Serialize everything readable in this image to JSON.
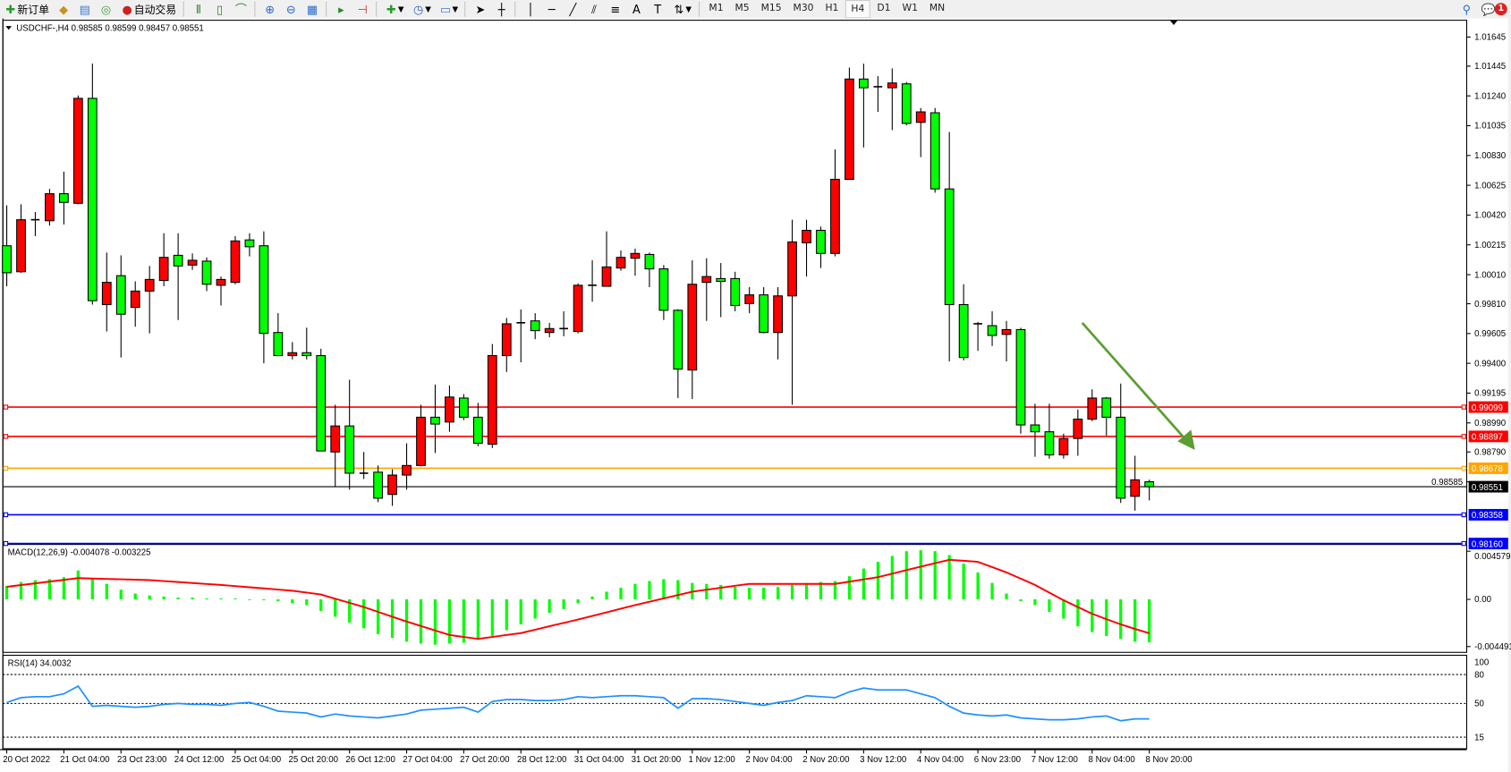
{
  "toolbar": {
    "new_order": "新订单",
    "auto_trading": "自动交易",
    "timeframes": [
      "M1",
      "M5",
      "M15",
      "M30",
      "H1",
      "H4",
      "D1",
      "W1",
      "MN"
    ],
    "active_timeframe": "H4",
    "notification_count": "1",
    "icons": [
      "new-order-icon",
      "market-watch-icon",
      "navigator-icon",
      "signals-icon",
      "auto-trading-icon",
      "bar-chart-icon",
      "candlestick-icon",
      "line-chart-icon",
      "zoom-in-icon",
      "zoom-out-icon",
      "tile-windows-icon",
      "autoscroll-icon",
      "chart-shift-icon",
      "indicators-icon",
      "periods-icon",
      "templates-icon",
      "cursor-icon",
      "crosshair-icon",
      "vertical-line-icon",
      "horizontal-line-icon",
      "trendline-icon",
      "equidistant-channel-icon",
      "fibonacci-icon",
      "text-icon",
      "text-label-icon",
      "arrows-icon",
      "search-icon",
      "chat-icon"
    ]
  },
  "chart": {
    "header": "USDCHF-,H4  0.98585 0.98599 0.98457 0.98551",
    "colors": {
      "bull": "#ff0000",
      "bear": "#00ff00",
      "wick": "#000000",
      "arrow": "#5a9e32"
    }
  },
  "chart_data": [
    {
      "type": "candlestick",
      "symbol": "USDCHF-",
      "timeframe": "H4",
      "ylim": [
        0.98167,
        1.01754
      ],
      "price_ticks": [
        "1.01645",
        "1.01445",
        "1.01240",
        "1.01035",
        "1.00830",
        "1.00625",
        "1.00420",
        "1.00215",
        "1.00010",
        "0.99810",
        "0.99605",
        "0.99400",
        "0.99195",
        "0.98990",
        "0.98790",
        "0.98585"
      ],
      "time_labels": [
        "20 Oct 2022",
        "21 Oct 04:00",
        "23 Oct 23:00",
        "24 Oct 12:00",
        "25 Oct 04:00",
        "25 Oct 20:00",
        "26 Oct 12:00",
        "27 Oct 04:00",
        "27 Oct 20:00",
        "28 Oct 12:00",
        "31 Oct 04:00",
        "31 Oct 20:00",
        "1 Nov 12:00",
        "2 Nov 04:00",
        "2 Nov 20:00",
        "3 Nov 12:00",
        "4 Nov 04:00",
        "6 Nov 23:00",
        "7 Nov 12:00",
        "8 Nov 04:00",
        "8 Nov 20:00"
      ],
      "hlines": [
        {
          "price": "0.99099",
          "color": "#ff0000"
        },
        {
          "price": "0.98897",
          "color": "#ff0000"
        },
        {
          "price": "0.98678",
          "color": "#ffa500"
        },
        {
          "price": "0.98551",
          "color": "#000000",
          "bid": true
        },
        {
          "price": "0.98358",
          "color": "#0000ff"
        },
        {
          "price": "0.98160",
          "color": "#0000ff"
        }
      ],
      "ohlc": [
        [
          1.00209,
          1.00487,
          0.9993,
          1.00023
        ],
        [
          1.0003,
          1.00494,
          1.00023,
          1.00388
        ],
        [
          1.00388,
          1.00441,
          1.00275,
          1.00388
        ],
        [
          1.00381,
          1.006,
          1.00348,
          1.00567
        ],
        [
          1.00567,
          1.00719,
          1.00355,
          1.00507
        ],
        [
          1.00501,
          1.01243,
          1.00494,
          1.01223
        ],
        [
          1.01223,
          1.01462,
          0.99804,
          0.99831
        ],
        [
          0.99804,
          1.00162,
          0.99619,
          0.99957
        ],
        [
          1.00003,
          1.00143,
          0.9944,
          0.99738
        ],
        [
          0.99785,
          0.99964,
          0.99652,
          0.99897
        ],
        [
          0.99897,
          1.0007,
          0.99606,
          0.99977
        ],
        [
          0.9997,
          1.00295,
          0.9993,
          1.00129
        ],
        [
          1.00143,
          1.00295,
          0.99698,
          1.0007
        ],
        [
          1.00076,
          1.00156,
          1.00043,
          1.00109
        ],
        [
          1.00103,
          1.00129,
          0.99897,
          0.99944
        ],
        [
          0.99937,
          0.99997,
          0.99798,
          0.99977
        ],
        [
          0.99957,
          1.00275,
          0.99944,
          1.00242
        ],
        [
          1.00249,
          1.00295,
          1.00136,
          1.00202
        ],
        [
          1.00209,
          1.00308,
          0.994,
          0.99606
        ],
        [
          0.99612,
          0.99745,
          0.99453,
          0.99453
        ],
        [
          0.99453,
          0.99546,
          0.99427,
          0.99473
        ],
        [
          0.99473,
          0.99645,
          0.99427,
          0.99453
        ],
        [
          0.99453,
          0.995,
          0.98797,
          0.98797
        ],
        [
          0.9879,
          0.99115,
          0.98551,
          0.98969
        ],
        [
          0.98969,
          0.99287,
          0.98531,
          0.98644
        ],
        [
          0.98644,
          0.9879,
          0.98604,
          0.98644
        ],
        [
          0.98651,
          0.98697,
          0.98445,
          0.98472
        ],
        [
          0.98498,
          0.98671,
          0.98419,
          0.98631
        ],
        [
          0.98631,
          0.9885,
          0.98531,
          0.98697
        ],
        [
          0.98697,
          0.99115,
          0.98691,
          0.99029
        ],
        [
          0.99029,
          0.99254,
          0.98783,
          0.98982
        ],
        [
          0.98996,
          0.99248,
          0.98929,
          0.99168
        ],
        [
          0.99161,
          0.99188,
          0.99009,
          0.99029
        ],
        [
          0.99029,
          0.99128,
          0.9883,
          0.9885
        ],
        [
          0.98843,
          0.99533,
          0.98817,
          0.99453
        ],
        [
          0.99453,
          0.99712,
          0.9934,
          0.99672
        ],
        [
          0.99679,
          0.99771,
          0.99407,
          0.99679
        ],
        [
          0.99692,
          0.99745,
          0.99566,
          0.99625
        ],
        [
          0.99612,
          0.99678,
          0.99579,
          0.99639
        ],
        [
          0.99639,
          0.99758,
          0.99586,
          0.99639
        ],
        [
          0.99619,
          0.9995,
          0.99606,
          0.99937
        ],
        [
          0.99937,
          1.00109,
          0.99824,
          0.99937
        ],
        [
          0.9993,
          1.00308,
          0.9993,
          1.00063
        ],
        [
          1.00056,
          1.00176,
          1.00037,
          1.00129
        ],
        [
          1.00123,
          1.00189,
          1.00003,
          1.00156
        ],
        [
          1.00149,
          1.00162,
          0.99924,
          1.0005
        ],
        [
          1.0005,
          1.00076,
          0.99698,
          0.99765
        ],
        [
          0.99765,
          0.99772,
          0.99161,
          0.9936
        ],
        [
          0.99354,
          1.00109,
          0.99155,
          0.99944
        ],
        [
          0.99957,
          1.00123,
          0.99692,
          0.99997
        ],
        [
          0.99983,
          1.0009,
          0.99718,
          0.99964
        ],
        [
          0.99983,
          1.0003,
          0.99758,
          0.99798
        ],
        [
          0.99811,
          0.99924,
          0.99745,
          0.99871
        ],
        [
          0.99871,
          0.99924,
          0.99606,
          0.99612
        ],
        [
          0.99612,
          0.99924,
          0.99427,
          0.99864
        ],
        [
          0.99864,
          1.00388,
          0.99115,
          1.00235
        ],
        [
          1.00229,
          1.00388,
          0.99997,
          1.00315
        ],
        [
          1.00315,
          1.00341,
          1.00056,
          1.00156
        ],
        [
          1.00156,
          1.00872,
          1.00136,
          1.00666
        ],
        [
          1.00666,
          1.01435,
          1.00666,
          1.01356
        ],
        [
          1.01356,
          1.01462,
          1.00885,
          1.01296
        ],
        [
          1.01303,
          1.01376,
          1.0113,
          1.01303
        ],
        [
          1.01296,
          1.01429,
          1.01005,
          1.01329
        ],
        [
          1.01323,
          1.01336,
          1.01038,
          1.01051
        ],
        [
          1.01058,
          1.01157,
          1.00819,
          1.0113
        ],
        [
          1.01124,
          1.01157,
          1.00574,
          1.006
        ],
        [
          1.006,
          1.00991,
          0.99413,
          0.99804
        ],
        [
          0.99804,
          0.99944,
          0.9942,
          0.9944
        ],
        [
          0.99672,
          0.99685,
          0.99486,
          0.99672
        ],
        [
          0.99659,
          0.99758,
          0.99519,
          0.99592
        ],
        [
          0.99599,
          0.99692,
          0.99413,
          0.99632
        ],
        [
          0.99632,
          0.99645,
          0.98916,
          0.98976
        ],
        [
          0.98976,
          0.99122,
          0.98757,
          0.98929
        ],
        [
          0.98929,
          0.99122,
          0.98744,
          0.9877
        ],
        [
          0.9877,
          0.98916,
          0.98744,
          0.98883
        ],
        [
          0.98883,
          0.99082,
          0.98764,
          0.99016
        ],
        [
          0.99016,
          0.99221,
          0.99002,
          0.99161
        ],
        [
          0.99161,
          0.99168,
          0.98903,
          0.99029
        ],
        [
          0.99029,
          0.99261,
          0.98439,
          0.98472
        ],
        [
          0.98485,
          0.98764,
          0.98386,
          0.98598
        ],
        [
          0.98585,
          0.98599,
          0.98457,
          0.98551
        ]
      ]
    },
    {
      "type": "bar+line",
      "title": "MACD(12,26,9) -0.004078 -0.003225",
      "ylim": [
        -0.00495,
        0.00513
      ],
      "ticks": [
        "0.004579",
        "0.00",
        "-0.004491"
      ],
      "tick_values": [
        0.004579,
        0,
        -0.004491
      ],
      "colors": {
        "histogram": "#00ff00",
        "signal": "#ff0000"
      },
      "histogram": [
        0.00128,
        0.00165,
        0.00183,
        0.00192,
        0.00211,
        0.00275,
        0.00202,
        0.00147,
        0.00092,
        0.00055,
        0.00037,
        0.00027,
        0.00018,
        0.00018,
        9e-05,
        9e-05,
        9e-05,
        0.0,
        -9e-05,
        -0.00018,
        -0.00037,
        -0.00055,
        -0.0011,
        -0.00165,
        -0.0022,
        -0.00275,
        -0.0033,
        -0.00366,
        -0.00403,
        -0.00421,
        -0.00431,
        -0.00421,
        -0.00412,
        -0.00385,
        -0.00348,
        -0.00293,
        -0.00238,
        -0.00183,
        -0.00128,
        -0.00092,
        -0.00037,
        0.00027,
        0.00073,
        0.0011,
        0.00147,
        0.00174,
        0.00192,
        0.00183,
        0.00156,
        0.00147,
        0.00137,
        0.00119,
        0.0011,
        0.0011,
        0.00119,
        0.00137,
        0.00156,
        0.00165,
        0.00174,
        0.0022,
        0.00293,
        0.00357,
        0.00412,
        0.00458,
        0.00467,
        0.00458,
        0.00421,
        0.00339,
        0.00256,
        0.00156,
        0.00055,
        -0.00018,
        -0.00055,
        -0.00119,
        -0.00183,
        -0.00256,
        -0.00311,
        -0.00348,
        -0.00376,
        -0.00403,
        -0.00408
      ],
      "signal": [
        0.00119,
        0.00136,
        0.00152,
        0.00169,
        0.00185,
        0.00202,
        0.00198,
        0.00194,
        0.00191,
        0.00187,
        0.00183,
        0.00174,
        0.00165,
        0.00155,
        0.00146,
        0.00137,
        0.00126,
        0.00115,
        0.00104,
        0.00093,
        0.00082,
        0.00064,
        0.00046,
        6e-05,
        -0.00033,
        -0.00073,
        -0.00119,
        -0.00165,
        -0.00211,
        -0.00254,
        -0.00296,
        -0.00339,
        -0.00358,
        -0.00376,
        -0.00358,
        -0.00339,
        -0.00321,
        -0.00289,
        -0.00256,
        -0.00224,
        -0.00192,
        -0.00158,
        -0.00124,
        -0.00089,
        -0.00055,
        -0.00023,
        9e-05,
        0.00041,
        0.00073,
        0.00092,
        0.0011,
        0.00129,
        0.00147,
        0.00147,
        0.00147,
        0.00147,
        0.00147,
        0.00147,
        0.00147,
        0.00168,
        0.0019,
        0.00211,
        0.00244,
        0.00278,
        0.00311,
        0.00344,
        0.00376,
        0.00367,
        0.00357,
        0.00307,
        0.00256,
        0.00197,
        0.00137,
        0.00064,
        -9e-05,
        -0.00073,
        -0.00137,
        -0.00188,
        -0.00238,
        -0.00281,
        -0.00323
      ]
    },
    {
      "type": "line",
      "title": "RSI(14) 34.0032",
      "ylim": [
        4,
        99
      ],
      "ticks": [
        "100",
        "80",
        "50",
        "15"
      ],
      "tick_values": [
        100,
        80,
        50,
        15
      ],
      "levels": [
        80,
        50,
        15
      ],
      "color": "#1e90ff",
      "values": [
        51,
        56,
        57,
        57,
        60,
        68,
        47,
        48,
        47,
        46,
        47,
        49,
        50,
        49,
        49,
        48,
        50,
        51,
        47,
        42,
        41,
        40,
        36,
        39,
        37,
        36,
        35,
        37,
        39,
        43,
        44,
        45,
        46,
        41,
        52,
        54,
        54,
        53,
        53,
        54,
        57,
        56,
        57,
        58,
        58,
        57,
        56,
        45,
        55,
        55,
        54,
        52,
        50,
        48,
        51,
        53,
        58,
        57,
        56,
        62,
        66,
        64,
        64,
        64,
        60,
        56,
        47,
        40,
        38,
        37,
        38,
        35,
        34,
        33,
        33,
        34,
        36,
        37,
        32,
        34,
        34
      ]
    }
  ]
}
